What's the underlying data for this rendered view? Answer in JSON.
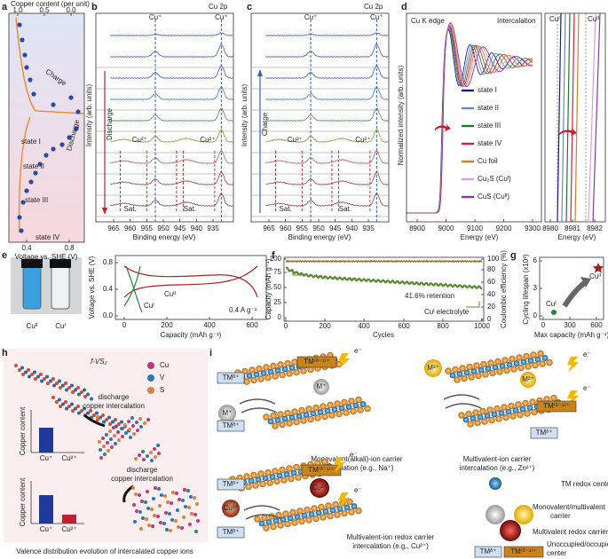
{
  "panels": {
    "a": {
      "label": "a",
      "top_title": "Copper content (per unit)",
      "top_ticks": [
        "1.0",
        "0.5",
        "0.0"
      ],
      "x_title": "Voltage vs. SHE (V)",
      "x_ticks": [
        "0.4",
        "0.8"
      ],
      "charge": "Charge",
      "discharge": "Discharge",
      "states": [
        "state I",
        "state II",
        "state III",
        "state IV"
      ]
    },
    "b": {
      "label": "b",
      "title": "Cu 2p",
      "y_title": "Intensity (arb. units)",
      "x_title": "Binding energy (eV)",
      "x_ticks": [
        "965",
        "960",
        "955",
        "950",
        "945",
        "940",
        "935"
      ],
      "upper": [
        "Cu⁺",
        "Cu⁺"
      ],
      "lower": [
        "Cu²⁺",
        "Cu²⁺"
      ],
      "sat": [
        "Sat.",
        "Sat."
      ],
      "arrow": "Discharge"
    },
    "c": {
      "label": "c",
      "title": "Cu 2p",
      "y_title": "Intensity (arb. units)",
      "x_title": "Binding energy (eV)",
      "x_ticks": [
        "965",
        "960",
        "955",
        "950",
        "945",
        "940",
        "935"
      ],
      "upper": [
        "Cu⁺",
        "Cu⁺"
      ],
      "lower": [
        "Cu²⁺",
        "Cu²⁺"
      ],
      "sat": [
        "Sat.",
        "Sat."
      ],
      "arrow": "Charge"
    },
    "d": {
      "label": "d",
      "title": "Cu K edge",
      "mode": "Intercalation",
      "y_title": "Normalized intensity (arb. units)",
      "x_title": "Energy (eV)",
      "x_ticks": [
        "8900",
        "9000",
        "9100",
        "9200",
        "9300"
      ],
      "legend": [
        {
          "name": "state I",
          "color": "#1a1a8c"
        },
        {
          "name": "state II",
          "color": "#6f86c8"
        },
        {
          "name": "state III",
          "color": "#1e7a2e"
        },
        {
          "name": "state IV",
          "color": "#d0223a"
        },
        {
          "name": "Cu foil",
          "color": "#e07a20"
        },
        {
          "name": "Cu₂S (Cuᴵ)",
          "color": "#d9a0e0"
        },
        {
          "name": "CuS (Cuᴵᴵ)",
          "color": "#8a3aa8"
        }
      ],
      "inset_labels": [
        "Cuᴵ",
        "Cuᴵᴵ"
      ],
      "inset_x_ticks": [
        "8980",
        "8981",
        "8982"
      ],
      "inset_x_title": "Energy (eV)"
    },
    "e": {
      "label": "e",
      "photo_labels": [
        "Cuᴵᴵ",
        "Cuᴵ"
      ],
      "y_title": "Voltage vs. SHE (V)",
      "y_ticks": [
        "0.0",
        "0.4",
        "0.8"
      ],
      "x_title": "Capacity (mAh g⁻¹)",
      "x_ticks": [
        "0",
        "200",
        "400",
        "600"
      ],
      "curve_labels": [
        "Cuᴵᴵ",
        "Cuᴵ"
      ],
      "rate": "0.4 A g⁻¹"
    },
    "f": {
      "label": "f",
      "y_title": "Capacity (mAh g⁻¹)",
      "y_ticks": [
        "0",
        "25",
        "50",
        "75",
        "100"
      ],
      "y2_title": "Coulombic efficiency (%)",
      "y2_ticks": [
        "0",
        "20",
        "40",
        "60",
        "80",
        "100"
      ],
      "x_title": "Cycles",
      "x_ticks": [
        "0",
        "200",
        "400",
        "600",
        "800",
        "1000"
      ],
      "retention": "41.6% retention",
      "electrolyte": "Cuᴵ electrolyte"
    },
    "g": {
      "label": "g",
      "y_title": "Cycling lifespan (x10³)",
      "y_ticks": [
        "0",
        "3",
        "6"
      ],
      "x_title": "Max capacity (mAh g⁻¹)",
      "x_ticks": [
        "0",
        "300",
        "600"
      ],
      "point_labels": [
        "Cuᴵ",
        "Cuᴵᴵ"
      ]
    },
    "h": {
      "label": "h",
      "material": "f-VS₂",
      "legend": [
        "Cu",
        "V",
        "S"
      ],
      "steps": [
        "discharge",
        "copper intercalation",
        "discharge",
        "copper intercalation"
      ],
      "y_titles": [
        "Copper content",
        "Copper content"
      ],
      "bars": [
        "Cu⁺",
        "Cu²⁺",
        "Cu⁺",
        "Cu²⁺"
      ],
      "caption": "Valence distribution evolution of intercalated copper ions"
    },
    "i": {
      "label": "i",
      "captions": [
        "Monovalent(alkali)-ion carrier",
        "intercalation (e.g., Na⁺)",
        "Multivalent-ion carrier",
        "intercalation (e.g., Zn²⁺)",
        "Multivalent-ion redox carrier",
        "intercalation (e.g., Cu²⁺)"
      ],
      "ions": [
        "M⁺",
        "M⁺",
        "M²⁺",
        "M²⁺",
        "Cu²⁺",
        "Cu²⁺"
      ],
      "tm": [
        "TMᵟ⁺",
        "TM⁽ᵟ⁻¹⁾⁺",
        "TMᵟ⁺",
        "TMᵟ⁺",
        "TM⁽ᵟ⁻¹⁾⁺",
        "TMᵟ⁺",
        "TM⁽ᵟ⁻¹⁾⁺",
        "TMᵟ⁺"
      ],
      "electron": [
        "e⁻",
        "e⁻",
        "e⁻",
        "e⁻",
        "e⁻"
      ],
      "legend": [
        "TM redox center",
        "Monovalent/multivalent",
        "carrier",
        "Multivalent redox carrier",
        "Unoccupied/occupied TM",
        "center"
      ],
      "legend_tm": [
        "TMᵟ⁺",
        "TM⁽ᵟ⁻¹⁾⁺"
      ]
    }
  }
}
